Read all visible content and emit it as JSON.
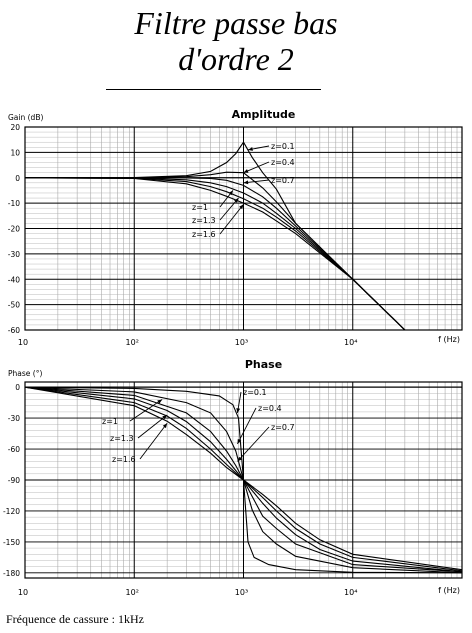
{
  "header": {
    "title_line1": "Filtre passe bas",
    "title_line2": "d'ordre 2"
  },
  "footer": {
    "text": "Fréquence de cassure : 1kHz"
  },
  "chart_data": [
    {
      "type": "line",
      "title": "Amplitude",
      "ylabel": "Gain (dB)",
      "xlabel": "f (Hz)",
      "xscale": "log",
      "xlim": [
        10,
        100000
      ],
      "ylim": [
        -60,
        20
      ],
      "xticks": [
        10,
        100,
        1000,
        10000
      ],
      "yticks": [
        20,
        10,
        0,
        -10,
        -20,
        -30,
        -40,
        -50,
        -60
      ],
      "grid": true,
      "cutoff_hz": 1000,
      "series_labels": [
        "z=0.1",
        "z=0.4",
        "z=0.7",
        "z=1",
        "z=1.3",
        "z=1.6"
      ],
      "series": [
        {
          "z": 0.1,
          "x": [
            10,
            100,
            300,
            500,
            700,
            850,
            1000,
            1200,
            1500,
            2000,
            3000,
            10000,
            30000
          ],
          "y": [
            0,
            0.1,
            0.8,
            2.5,
            6,
            9.5,
            14,
            8,
            2,
            -4.5,
            -18,
            -40,
            -60
          ]
        },
        {
          "z": 0.4,
          "x": [
            10,
            100,
            300,
            500,
            700,
            1000,
            1500,
            2000,
            3000,
            10000,
            30000
          ],
          "y": [
            0,
            0,
            0.4,
            1.2,
            2.2,
            2,
            -4,
            -9.5,
            -18,
            -40,
            -60
          ]
        },
        {
          "z": 0.7,
          "x": [
            10,
            100,
            300,
            500,
            700,
            1000,
            1500,
            2000,
            3000,
            10000,
            30000
          ],
          "y": [
            0,
            0,
            -0.1,
            -0.3,
            -1,
            -3,
            -7.5,
            -12,
            -19,
            -40,
            -60
          ]
        },
        {
          "z": 1.0,
          "x": [
            10,
            100,
            300,
            500,
            700,
            1000,
            1500,
            2000,
            3000,
            10000,
            30000
          ],
          "y": [
            0,
            -0.1,
            -0.8,
            -2,
            -3.5,
            -6,
            -10,
            -14,
            -20,
            -40,
            -60
          ]
        },
        {
          "z": 1.3,
          "x": [
            10,
            100,
            300,
            500,
            700,
            1000,
            1500,
            2000,
            3000,
            10000,
            30000
          ],
          "y": [
            0,
            -0.2,
            -1.5,
            -3.5,
            -5.5,
            -8.3,
            -12,
            -15.5,
            -21,
            -40,
            -60
          ]
        },
        {
          "z": 1.6,
          "x": [
            10,
            100,
            300,
            500,
            700,
            1000,
            1500,
            2000,
            3000,
            10000,
            30000
          ],
          "y": [
            0,
            -0.3,
            -2.4,
            -5,
            -7.3,
            -10,
            -13.5,
            -17,
            -22,
            -40,
            -60
          ]
        }
      ]
    },
    {
      "type": "line",
      "title": "Phase",
      "ylabel": "Phase (°)",
      "xlabel": "f (Hz)",
      "xscale": "log",
      "xlim": [
        10,
        100000
      ],
      "ylim": [
        -185,
        5
      ],
      "xticks": [
        10,
        100,
        1000,
        10000
      ],
      "yticks": [
        0,
        -30,
        -60,
        -90,
        -120,
        -150,
        -180
      ],
      "grid": true,
      "series_labels": [
        "z=0.1",
        "z=0.4",
        "z=0.7",
        "z=1",
        "z=1.3",
        "z=1.6"
      ],
      "series": [
        {
          "z": 0.1,
          "x": [
            10,
            100,
            300,
            600,
            800,
            900,
            1000,
            1100,
            1250,
            1700,
            3000,
            10000,
            100000
          ],
          "y": [
            0,
            -1.2,
            -4,
            -8.5,
            -17,
            -30,
            -90,
            -150,
            -165,
            -172,
            -177,
            -179.5,
            -180
          ]
        },
        {
          "z": 0.4,
          "x": [
            10,
            100,
            300,
            500,
            700,
            850,
            1000,
            1200,
            1500,
            2000,
            3000,
            10000,
            100000
          ],
          "y": [
            0,
            -4.6,
            -15,
            -25,
            -43,
            -62,
            -90,
            -119,
            -140,
            -152,
            -164,
            -175,
            -180
          ]
        },
        {
          "z": 0.7,
          "x": [
            10,
            100,
            300,
            500,
            700,
            850,
            1000,
            1200,
            1500,
            2000,
            3000,
            10000,
            100000
          ],
          "y": [
            0,
            -8,
            -25,
            -43,
            -62,
            -76,
            -90,
            -106,
            -125,
            -137,
            -152,
            -172,
            -179
          ]
        },
        {
          "z": 1.0,
          "x": [
            10,
            100,
            200,
            300,
            500,
            700,
            1000,
            1500,
            2000,
            3000,
            5000,
            10000,
            100000
          ],
          "y": [
            0,
            -11.4,
            -22.6,
            -33.4,
            -53,
            -70,
            -90,
            -112.6,
            -126.9,
            -143,
            -157.4,
            -168.6,
            -179
          ]
        },
        {
          "z": 1.3,
          "x": [
            10,
            100,
            200,
            300,
            500,
            700,
            1000,
            1500,
            2000,
            3000,
            5000,
            10000,
            100000
          ],
          "y": [
            0,
            -15,
            -28,
            -40,
            -60,
            -75,
            -90,
            -107,
            -120,
            -137,
            -152,
            -165,
            -178
          ]
        },
        {
          "z": 1.6,
          "x": [
            10,
            100,
            200,
            300,
            500,
            700,
            1000,
            1500,
            2000,
            3000,
            5000,
            10000,
            100000
          ],
          "y": [
            0,
            -18,
            -33,
            -46,
            -64,
            -78,
            -90,
            -104,
            -115,
            -132,
            -148,
            -162,
            -177
          ]
        }
      ]
    }
  ]
}
